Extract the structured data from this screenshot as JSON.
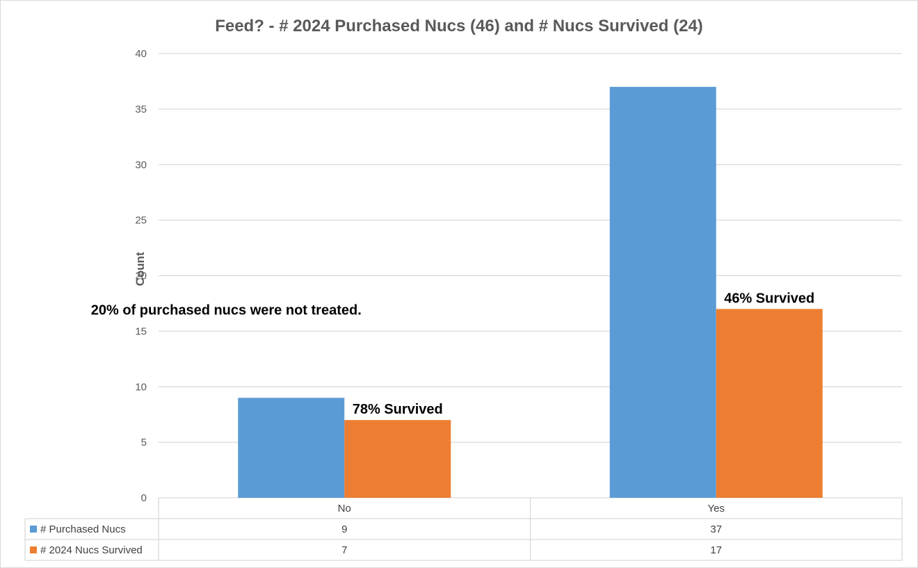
{
  "chart_data": {
    "type": "bar",
    "title": "Feed? - # 2024 Purchased Nucs (46) and # Nucs Survived (24)",
    "ylabel": "Count",
    "xlabel": "",
    "categories": [
      "No",
      "Yes"
    ],
    "series": [
      {
        "name": "# Purchased Nucs",
        "values": [
          9,
          37
        ],
        "color": "#5B9BD5"
      },
      {
        "name": "# 2024 Nucs Survived",
        "values": [
          7,
          17
        ],
        "color": "#ED7D31"
      }
    ],
    "ylim": [
      0,
      40
    ],
    "yticks": [
      0,
      5,
      10,
      15,
      20,
      25,
      30,
      35,
      40
    ],
    "grid": true,
    "legend": "data-table",
    "annotations": [
      {
        "text": "20% of purchased nucs were not treated.",
        "anchor_category": "No",
        "at_value": 16.5
      },
      {
        "text": "78% Survived",
        "anchor_category": "No",
        "anchor_series": 1
      },
      {
        "text": "46% Survived",
        "anchor_category": "Yes",
        "anchor_series": 1
      }
    ]
  }
}
